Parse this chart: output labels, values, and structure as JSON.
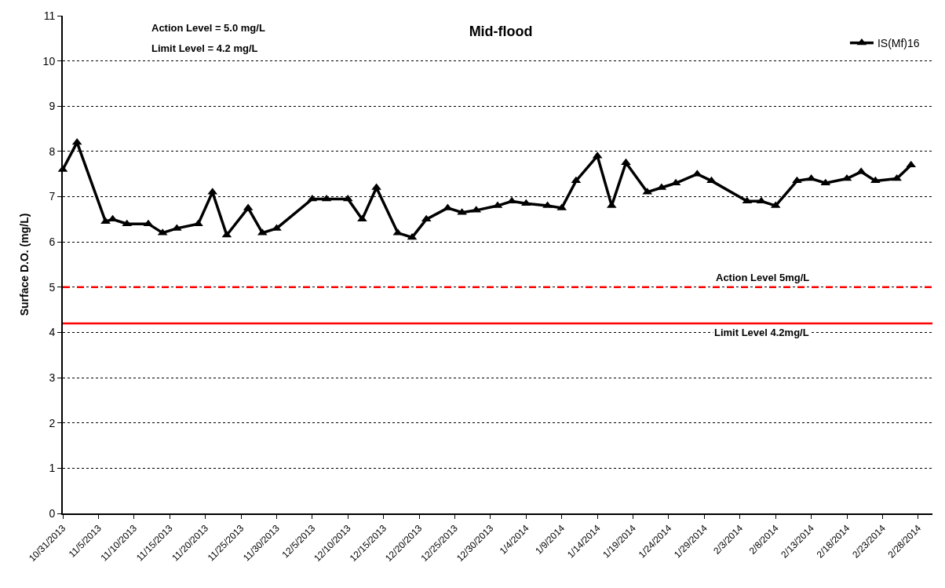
{
  "chart_data": {
    "type": "line",
    "title": "Mid-flood",
    "ylabel": "Surface D.O. (mg/L)",
    "annotations": [
      "Action Level = 5.0 mg/L",
      "Limit Level = 4.2 mg/L"
    ],
    "x": [
      "2013-10-31",
      "2013-11-02",
      "2013-11-06",
      "2013-11-07",
      "2013-11-09",
      "2013-11-12",
      "2013-11-14",
      "2013-11-16",
      "2013-11-19",
      "2013-11-21",
      "2013-11-23",
      "2013-11-26",
      "2013-11-28",
      "2013-11-30",
      "2013-12-05",
      "2013-12-07",
      "2013-12-10",
      "2013-12-12",
      "2013-12-14",
      "2013-12-17",
      "2013-12-19",
      "2013-12-21",
      "2013-12-24",
      "2013-12-26",
      "2013-12-28",
      "2013-12-31",
      "2014-01-02",
      "2014-01-04",
      "2014-01-07",
      "2014-01-09",
      "2014-01-11",
      "2014-01-14",
      "2014-01-16",
      "2014-01-18",
      "2014-01-21",
      "2014-01-23",
      "2014-01-25",
      "2014-01-28",
      "2014-01-30",
      "2014-02-04",
      "2014-02-06",
      "2014-02-08",
      "2014-02-11",
      "2014-02-13",
      "2014-02-15",
      "2014-02-18",
      "2014-02-20",
      "2014-02-22",
      "2014-02-25",
      "2014-02-27"
    ],
    "series": [
      {
        "name": "IS(Mf)16",
        "color": "#000000",
        "values": [
          7.6,
          8.2,
          6.45,
          6.5,
          6.4,
          6.4,
          6.2,
          6.3,
          6.4,
          7.1,
          6.15,
          6.75,
          6.2,
          6.3,
          6.95,
          6.95,
          6.95,
          6.5,
          7.2,
          6.2,
          6.1,
          6.5,
          6.75,
          6.65,
          6.7,
          6.8,
          6.9,
          6.85,
          6.8,
          6.75,
          7.35,
          7.9,
          6.8,
          7.75,
          7.1,
          7.2,
          7.3,
          7.5,
          7.35,
          6.9,
          6.9,
          6.8,
          7.35,
          7.4,
          7.3,
          7.4,
          7.55,
          7.35,
          7.4,
          7.7
        ]
      }
    ],
    "xlim": [
      "2013-10-31",
      "2014-03-02"
    ],
    "xticks": [
      {
        "value": "2013-10-31",
        "label": "10/31/2013"
      },
      {
        "value": "2013-11-05",
        "label": "11/5/2013"
      },
      {
        "value": "2013-11-10",
        "label": "11/10/2013"
      },
      {
        "value": "2013-11-15",
        "label": "11/15/2013"
      },
      {
        "value": "2013-11-20",
        "label": "11/20/2013"
      },
      {
        "value": "2013-11-25",
        "label": "11/25/2013"
      },
      {
        "value": "2013-11-30",
        "label": "11/30/2013"
      },
      {
        "value": "2013-12-05",
        "label": "12/5/2013"
      },
      {
        "value": "2013-12-10",
        "label": "12/10/2013"
      },
      {
        "value": "2013-12-15",
        "label": "12/15/2013"
      },
      {
        "value": "2013-12-20",
        "label": "12/20/2013"
      },
      {
        "value": "2013-12-25",
        "label": "12/25/2013"
      },
      {
        "value": "2013-12-30",
        "label": "12/30/2013"
      },
      {
        "value": "2014-01-04",
        "label": "1/4/2014"
      },
      {
        "value": "2014-01-09",
        "label": "1/9/2014"
      },
      {
        "value": "2014-01-14",
        "label": "1/14/2014"
      },
      {
        "value": "2014-01-19",
        "label": "1/19/2014"
      },
      {
        "value": "2014-01-24",
        "label": "1/24/2014"
      },
      {
        "value": "2014-01-29",
        "label": "1/29/2014"
      },
      {
        "value": "2014-02-03",
        "label": "2/3/2014"
      },
      {
        "value": "2014-02-08",
        "label": "2/8/2014"
      },
      {
        "value": "2014-02-13",
        "label": "2/13/2014"
      },
      {
        "value": "2014-02-18",
        "label": "2/18/2014"
      },
      {
        "value": "2014-02-23",
        "label": "2/23/2014"
      },
      {
        "value": "2014-02-28",
        "label": "2/28/2014"
      }
    ],
    "ylim": [
      0,
      11
    ],
    "yticks": [
      0,
      1,
      2,
      3,
      4,
      5,
      6,
      7,
      8,
      9,
      10,
      11
    ],
    "ref_lines": [
      {
        "axis": "y",
        "value": 5,
        "label": "Action Level 5mg/L",
        "color": "#ff0000",
        "line_style": "dashed"
      },
      {
        "axis": "y",
        "value": 4.2,
        "label": "Limit Level 4.2mg/L",
        "color": "#ff0000",
        "line_style": "solid"
      }
    ],
    "grid": "y",
    "legend": "top right",
    "marker": "triangle",
    "line_style": "solid"
  }
}
